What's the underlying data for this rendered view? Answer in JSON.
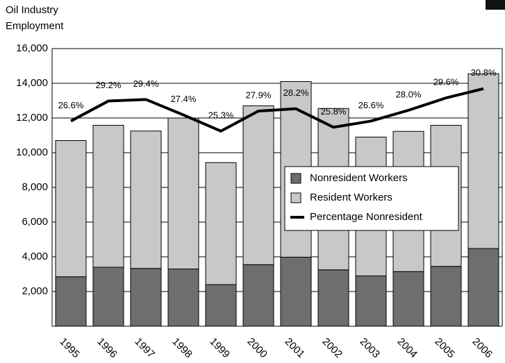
{
  "chart_data": {
    "type": "bar",
    "stacked": true,
    "y_label_lines": [
      "Oil Industry",
      "Employment"
    ],
    "categories": [
      "1995",
      "1996",
      "1997",
      "1998",
      "1999",
      "2000",
      "2001",
      "2002",
      "2003",
      "2004",
      "2005",
      "2006"
    ],
    "series": [
      {
        "name": "Nonresident Workers",
        "color": "#6e6e6e",
        "values": [
          2850,
          3400,
          3330,
          3300,
          2400,
          3550,
          3980,
          3250,
          2900,
          3150,
          3450,
          4480
        ]
      },
      {
        "name": "Resident Workers",
        "color": "#c8c8c8",
        "values": [
          7850,
          8180,
          7920,
          8700,
          7030,
          9150,
          10120,
          9300,
          8000,
          8080,
          8130,
          10070
        ]
      },
      {
        "name": "Percentage Nonresident",
        "color": "#000000",
        "type": "line",
        "axis": "y2",
        "values": [
          26.6,
          29.2,
          29.4,
          27.4,
          25.3,
          27.9,
          28.2,
          25.8,
          26.6,
          28.0,
          29.6,
          30.8
        ],
        "value_labels": [
          "26.6%",
          "29.2%",
          "29.4%",
          "27.4%",
          "25.3%",
          "27.9%",
          "28.2%",
          "25.8%",
          "26.6%",
          "28.0%",
          "29.6%",
          "30.8%"
        ]
      }
    ],
    "ylim": [
      0,
      16000
    ],
    "yticks": [
      {
        "value": 2000,
        "label": "2,000"
      },
      {
        "value": 4000,
        "label": "4,000"
      },
      {
        "value": 6000,
        "label": "6,000"
      },
      {
        "value": 8000,
        "label": "8,000"
      },
      {
        "value": 10000,
        "label": "10,000"
      },
      {
        "value": 12000,
        "label": "12,000"
      },
      {
        "value": 14000,
        "label": "14,000"
      },
      {
        "value": 16000,
        "label": "16,000"
      }
    ],
    "y2lim": [
      0,
      36
    ],
    "grid": true
  }
}
